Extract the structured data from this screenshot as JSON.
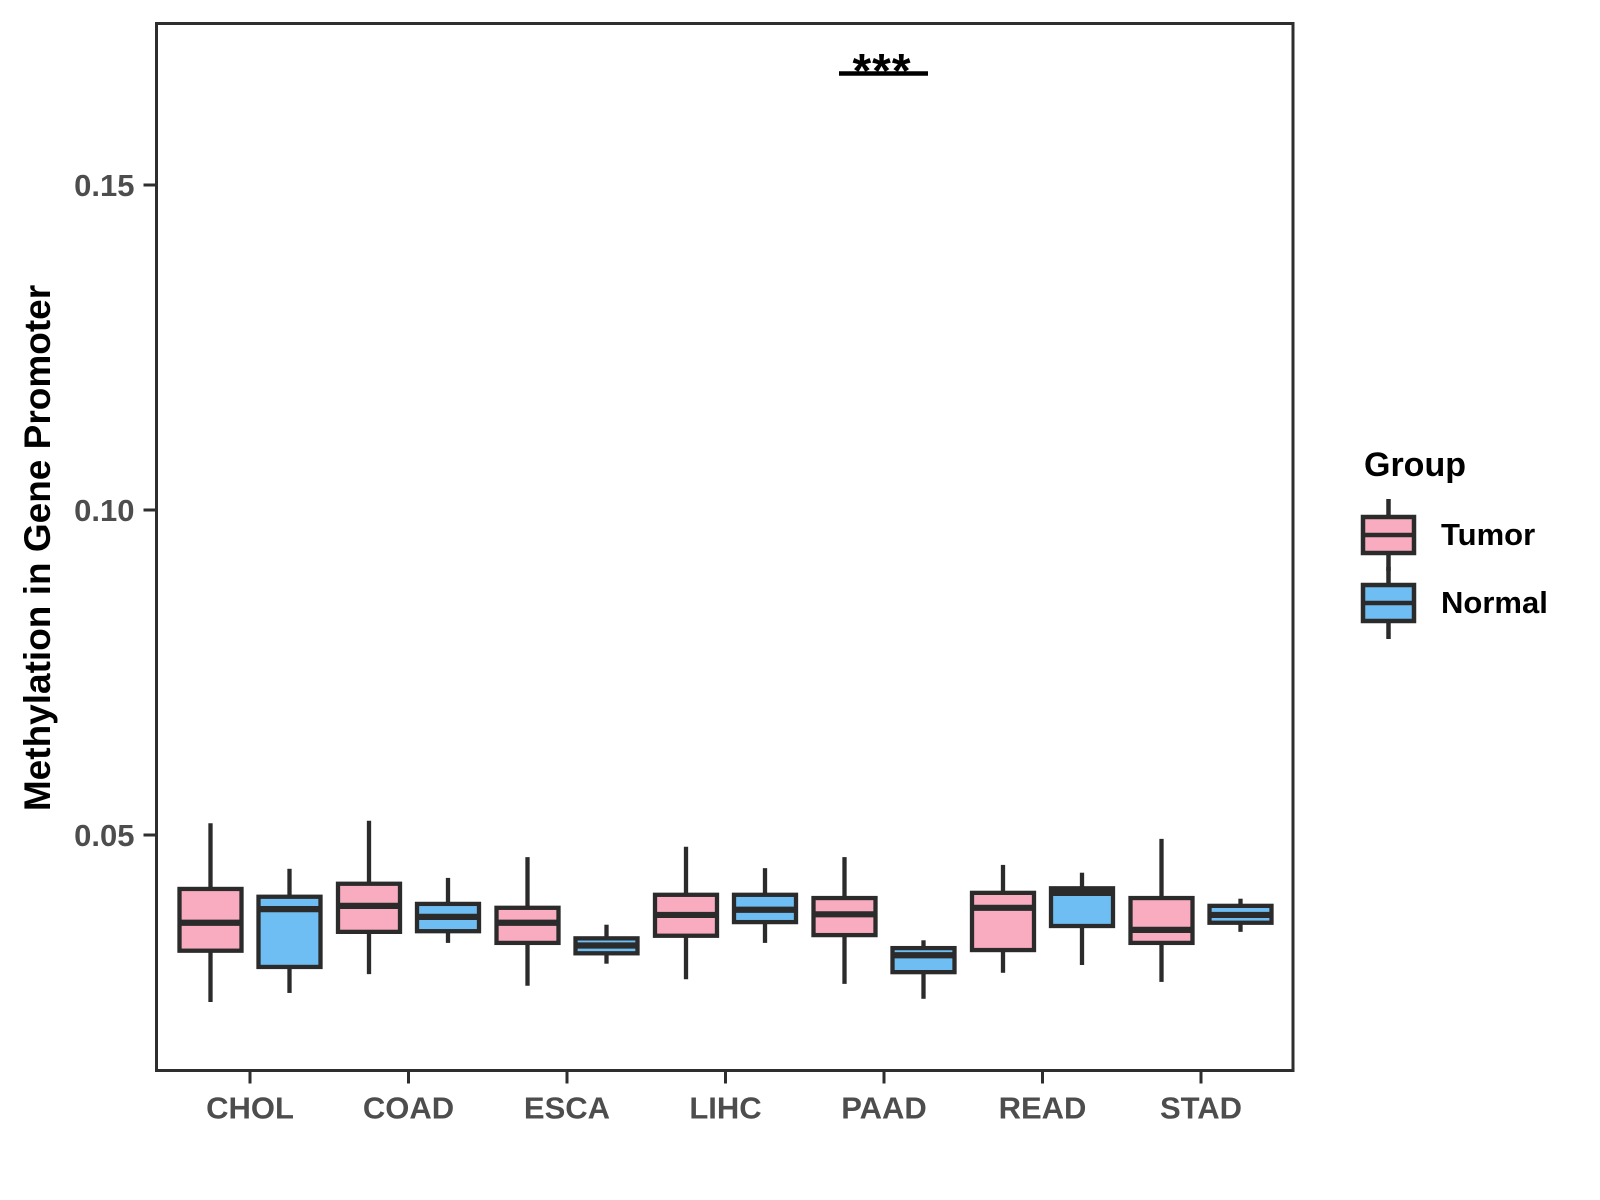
{
  "figure": {
    "y_axis_title": "Methylation in Gene Promoter"
  },
  "legend": {
    "title": "Group",
    "items": [
      {
        "label": "Tumor",
        "color": "#F9ACC0"
      },
      {
        "label": "Normal",
        "color": "#6FBEF3"
      }
    ]
  },
  "chart_data": {
    "type": "boxplot",
    "title": "",
    "xlabel": "",
    "ylabel": "Methylation in Gene Promoter",
    "grid": false,
    "legend_position": "right",
    "categories": [
      "CHOL",
      "COAD",
      "ESCA",
      "LIHC",
      "PAAD",
      "READ",
      "STAD"
    ],
    "y_ticks": [
      0.05,
      0.1,
      0.15
    ],
    "y_tick_labels": [
      "0.05",
      "0.10",
      "0.15"
    ],
    "ylim": [
      0.014,
      0.175
    ],
    "series": [
      {
        "name": "Tumor",
        "color": "#F9ACC0",
        "boxes": [
          {
            "category": "CHOL",
            "low": 0.0243,
            "q1": 0.0322,
            "median": 0.0365,
            "q3": 0.0417,
            "high": 0.0518
          },
          {
            "category": "COAD",
            "low": 0.0286,
            "q1": 0.0351,
            "median": 0.0391,
            "q3": 0.0425,
            "high": 0.0522
          },
          {
            "category": "ESCA",
            "low": 0.0268,
            "q1": 0.0334,
            "median": 0.0365,
            "q3": 0.0388,
            "high": 0.0466
          },
          {
            "category": "LIHC",
            "low": 0.0278,
            "q1": 0.0345,
            "median": 0.0377,
            "q3": 0.0408,
            "high": 0.0482
          },
          {
            "category": "PAAD",
            "low": 0.0271,
            "q1": 0.0346,
            "median": 0.0378,
            "q3": 0.0403,
            "high": 0.0466
          },
          {
            "category": "READ",
            "low": 0.0288,
            "q1": 0.0323,
            "median": 0.0388,
            "q3": 0.0411,
            "high": 0.0454
          },
          {
            "category": "STAD",
            "low": 0.0274,
            "q1": 0.0334,
            "median": 0.0354,
            "q3": 0.0403,
            "high": 0.0494
          }
        ]
      },
      {
        "name": "Normal",
        "color": "#6FBEF3",
        "boxes": [
          {
            "category": "CHOL",
            "low": 0.0257,
            "q1": 0.0297,
            "median": 0.0386,
            "q3": 0.0405,
            "high": 0.0448
          },
          {
            "category": "COAD",
            "low": 0.0334,
            "q1": 0.0352,
            "median": 0.0374,
            "q3": 0.0394,
            "high": 0.0434
          },
          {
            "category": "ESCA",
            "low": 0.0302,
            "q1": 0.0318,
            "median": 0.033,
            "q3": 0.0341,
            "high": 0.0362
          },
          {
            "category": "LIHC",
            "low": 0.0334,
            "q1": 0.0366,
            "median": 0.0385,
            "q3": 0.0408,
            "high": 0.0449
          },
          {
            "category": "PAAD",
            "low": 0.0248,
            "q1": 0.0289,
            "median": 0.0315,
            "q3": 0.0326,
            "high": 0.0338
          },
          {
            "category": "READ",
            "low": 0.03,
            "q1": 0.036,
            "median": 0.0411,
            "q3": 0.0418,
            "high": 0.0442
          },
          {
            "category": "STAD",
            "low": 0.0351,
            "q1": 0.0365,
            "median": 0.0377,
            "q3": 0.0391,
            "high": 0.0402
          }
        ]
      }
    ],
    "annotations": {
      "significance": {
        "category": "PAAD",
        "label": "***"
      }
    },
    "style_colors": {
      "box_outline": "#2B2B2B",
      "panel_border": "#2E2E2E",
      "tick_text": "#4D4D4D",
      "annotation_text": "#000000"
    }
  }
}
